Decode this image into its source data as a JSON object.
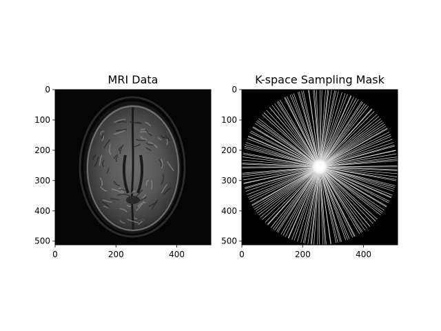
{
  "panels": [
    {
      "title": "MRI Data",
      "x_ticks": [
        "0",
        "200",
        "400"
      ],
      "y_ticks": [
        "0",
        "100",
        "200",
        "300",
        "400",
        "500"
      ],
      "image": "brain-mri-axial-slice"
    },
    {
      "title": "K-space Sampling Mask",
      "x_ticks": [
        "0",
        "200",
        "400"
      ],
      "y_ticks": [
        "0",
        "100",
        "200",
        "300",
        "400",
        "500"
      ],
      "image": "radial-kspace-sampling-mask"
    }
  ],
  "axis": {
    "x_values": [
      0,
      200,
      400
    ],
    "y_values": [
      0,
      100,
      200,
      300,
      400,
      500
    ],
    "extent": 512
  },
  "colors": {
    "background": "#000000",
    "foreground": "#ffffff"
  }
}
